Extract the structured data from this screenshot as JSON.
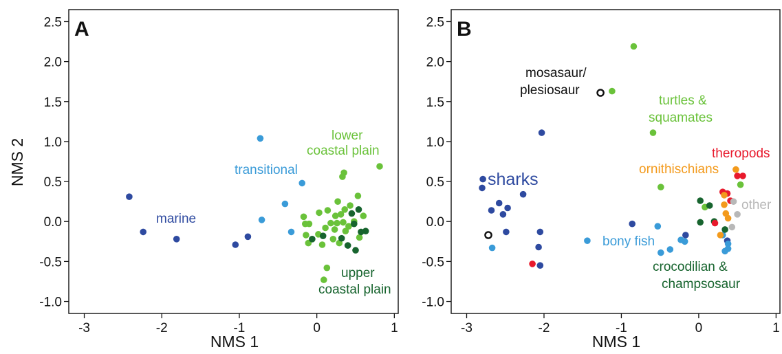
{
  "colors": {
    "marine": "#2e4aa0",
    "transitional": "#3a9bd8",
    "lower": "#6ac23a",
    "upper": "#17642e",
    "sharks": "#2e4aa0",
    "bonyfish": "#3a9bd8",
    "turtles": "#6ac23a",
    "croc": "#17642e",
    "theropods": "#e8192c",
    "ornith": "#f39a1c",
    "other": "#b8b8b8",
    "mosasaur": "#111111"
  },
  "chart_data": [
    {
      "type": "scatter",
      "panel": "A",
      "xlabel": "NMS 1",
      "ylabel": "NMS 2",
      "xlim": [
        -3.2,
        1.05
      ],
      "ylim": [
        -1.15,
        2.65
      ],
      "xticks": [
        "-3",
        "-2",
        "-1",
        "0",
        "1"
      ],
      "xtick_values": [
        -3,
        -2,
        -1,
        0,
        1
      ],
      "yticks": [
        "-1.0",
        "-0.5",
        "0.0",
        "0.5",
        "1.0",
        "1.5",
        "2.0",
        "2.5"
      ],
      "ytick_values": [
        -1.0,
        -0.5,
        0.0,
        0.5,
        1.0,
        1.5,
        2.0,
        2.5
      ],
      "annotations": [
        "marine",
        "transitional",
        "lower",
        "coastal plain",
        "upper",
        "coastal plain"
      ],
      "series": [
        {
          "name": "marine",
          "color_key": "marine",
          "points": [
            [
              -2.42,
              0.31
            ],
            [
              -2.24,
              -0.13
            ],
            [
              -1.81,
              -0.22
            ],
            [
              -1.05,
              -0.29
            ],
            [
              -0.89,
              -0.19
            ]
          ]
        },
        {
          "name": "transitional",
          "color_key": "transitional",
          "points": [
            [
              -0.73,
              1.04
            ],
            [
              -0.71,
              0.02
            ],
            [
              -0.41,
              0.22
            ],
            [
              -0.19,
              0.48
            ],
            [
              -0.33,
              -0.13
            ]
          ]
        },
        {
          "name": "lower coastal plain",
          "color_key": "lower",
          "points": [
            [
              0.81,
              0.69
            ],
            [
              0.35,
              0.61
            ],
            [
              0.33,
              0.56
            ],
            [
              0.53,
              0.32
            ],
            [
              0.43,
              0.2
            ],
            [
              0.27,
              0.25
            ],
            [
              0.36,
              0.15
            ],
            [
              0.14,
              0.14
            ],
            [
              0.03,
              0.11
            ],
            [
              -0.17,
              0.06
            ],
            [
              0.31,
              0.09
            ],
            [
              0.24,
              0.07
            ],
            [
              0.6,
              0.07
            ],
            [
              -0.15,
              -0.03
            ],
            [
              -0.1,
              -0.03
            ],
            [
              0.18,
              -0.02
            ],
            [
              0.26,
              -0.02
            ],
            [
              0.34,
              -0.01
            ],
            [
              0.48,
              0.0
            ],
            [
              0.41,
              -0.06
            ],
            [
              0.11,
              -0.08
            ],
            [
              0.23,
              -0.1
            ],
            [
              0.37,
              -0.12
            ],
            [
              0.02,
              -0.16
            ],
            [
              0.55,
              -0.2
            ],
            [
              -0.14,
              -0.17
            ],
            [
              0.21,
              -0.22
            ],
            [
              -0.11,
              -0.27
            ],
            [
              0.07,
              -0.29
            ],
            [
              0.29,
              -0.27
            ],
            [
              0.13,
              -0.58
            ],
            [
              0.09,
              -0.73
            ]
          ]
        },
        {
          "name": "upper coastal plain",
          "color_key": "upper",
          "points": [
            [
              0.54,
              0.15
            ],
            [
              0.45,
              0.1
            ],
            [
              0.48,
              -0.03
            ],
            [
              0.63,
              -0.12
            ],
            [
              0.57,
              -0.13
            ],
            [
              0.32,
              -0.21
            ],
            [
              -0.06,
              -0.22
            ],
            [
              0.08,
              -0.18
            ],
            [
              0.4,
              -0.3
            ],
            [
              0.5,
              -0.36
            ]
          ]
        }
      ]
    },
    {
      "type": "scatter",
      "panel": "B",
      "xlabel": "NMS 1",
      "ylabel": "",
      "xlim": [
        -3.2,
        1.05
      ],
      "ylim": [
        -1.15,
        2.65
      ],
      "xticks": [
        "-3",
        "-2",
        "-1",
        "0",
        "1"
      ],
      "xtick_values": [
        -3,
        -2,
        -1,
        0,
        1
      ],
      "yticks": [
        "-1.0",
        "-0.5",
        "0.0",
        "0.5",
        "1.0",
        "1.5",
        "2.0",
        "2.5"
      ],
      "ytick_values": [
        -1.0,
        -0.5,
        0.0,
        0.5,
        1.0,
        1.5,
        2.0,
        2.5
      ],
      "annotations": [
        "mosasaur/",
        "plesiosaur",
        "turtles &",
        "squamates",
        "sharks",
        "theropods",
        "ornithischians",
        "other",
        "bony fish",
        "crocodilian &",
        "champsosaur"
      ],
      "series": [
        {
          "name": "sharks",
          "color_key": "sharks",
          "points": [
            [
              -2.03,
              1.11
            ],
            [
              -2.79,
              0.53
            ],
            [
              -2.8,
              0.42
            ],
            [
              -2.27,
              0.34
            ],
            [
              -2.58,
              0.23
            ],
            [
              -2.68,
              0.14
            ],
            [
              -2.47,
              0.17
            ],
            [
              -2.53,
              0.09
            ],
            [
              -2.49,
              -0.13
            ],
            [
              -2.05,
              -0.13
            ],
            [
              -2.07,
              -0.32
            ],
            [
              -2.05,
              -0.55
            ],
            [
              -0.86,
              -0.03
            ],
            [
              -0.17,
              -0.17
            ],
            [
              0.37,
              -0.24
            ]
          ]
        },
        {
          "name": "bony fish",
          "color_key": "bonyfish",
          "points": [
            [
              -2.67,
              -0.33
            ],
            [
              -1.44,
              -0.24
            ],
            [
              -0.53,
              -0.06
            ],
            [
              -0.23,
              -0.23
            ],
            [
              -0.37,
              -0.35
            ],
            [
              -0.49,
              -0.39
            ],
            [
              -0.18,
              -0.25
            ],
            [
              0.38,
              -0.28
            ],
            [
              0.38,
              -0.34
            ],
            [
              0.31,
              -0.17
            ],
            [
              0.34,
              -0.37
            ]
          ]
        },
        {
          "name": "turtles & squamates",
          "color_key": "turtles",
          "points": [
            [
              -0.84,
              2.19
            ],
            [
              -1.12,
              1.63
            ],
            [
              -0.59,
              1.11
            ],
            [
              -0.49,
              0.43
            ],
            [
              0.54,
              0.46
            ],
            [
              0.08,
              0.18
            ]
          ]
        },
        {
          "name": "crocodilian & champsosaur",
          "color_key": "croc",
          "points": [
            [
              0.02,
              0.26
            ],
            [
              0.02,
              -0.01
            ],
            [
              0.14,
              0.2
            ],
            [
              0.2,
              0.0
            ],
            [
              0.34,
              -0.1
            ]
          ]
        },
        {
          "name": "theropods",
          "color_key": "theropods",
          "points": [
            [
              -2.15,
              -0.53
            ],
            [
              0.5,
              0.57
            ],
            [
              0.57,
              0.57
            ],
            [
              0.31,
              0.37
            ],
            [
              0.37,
              0.35
            ],
            [
              0.41,
              0.26
            ],
            [
              0.21,
              -0.02
            ]
          ]
        },
        {
          "name": "ornithischians",
          "color_key": "ornith",
          "points": [
            [
              0.48,
              0.65
            ],
            [
              0.33,
              0.33
            ],
            [
              0.33,
              0.21
            ],
            [
              0.35,
              0.1
            ],
            [
              0.38,
              0.04
            ],
            [
              0.28,
              -0.17
            ]
          ]
        },
        {
          "name": "other",
          "color_key": "other",
          "points": [
            [
              0.45,
              0.25
            ],
            [
              0.5,
              0.09
            ],
            [
              0.43,
              -0.07
            ]
          ]
        },
        {
          "name": "mosasaur/plesiosaur",
          "color_key": "mosasaur",
          "hollow": true,
          "points": [
            [
              -1.27,
              1.61
            ],
            [
              -2.72,
              -0.17
            ]
          ]
        }
      ]
    }
  ]
}
